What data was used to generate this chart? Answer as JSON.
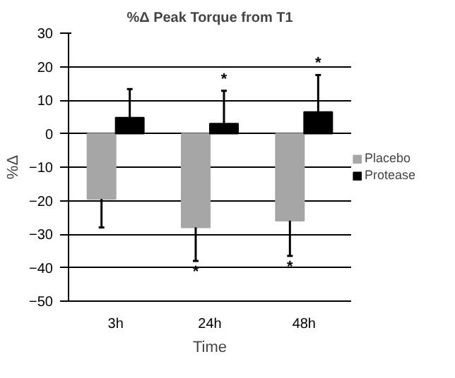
{
  "chart_data": {
    "type": "bar",
    "title": "%Δ Peak Torque from T1",
    "xlabel": "Time",
    "ylabel": "%Δ",
    "categories": [
      "3h",
      "24h",
      "48h"
    ],
    "series": [
      {
        "name": "Placebo",
        "color": "#a6a6a6",
        "values": [
          -19.5,
          -28,
          -26
        ],
        "errors": [
          [
            -28,
            -19.5
          ],
          [
            -38,
            -28
          ],
          [
            -36.5,
            -26
          ]
        ]
      },
      {
        "name": "Protease",
        "color": "#000000",
        "values": [
          4.8,
          3,
          6.5
        ],
        "errors": [
          [
            4.8,
            13.3
          ],
          [
            3,
            12.8
          ],
          [
            6.5,
            17.5
          ]
        ]
      }
    ],
    "ylim": [
      -50,
      30
    ],
    "yticks": [
      -50,
      -40,
      -30,
      -20,
      -10,
      0,
      10,
      20,
      30
    ],
    "grid": "y",
    "legend": "right",
    "annotations": [
      "*",
      "*",
      "*",
      "*"
    ]
  }
}
